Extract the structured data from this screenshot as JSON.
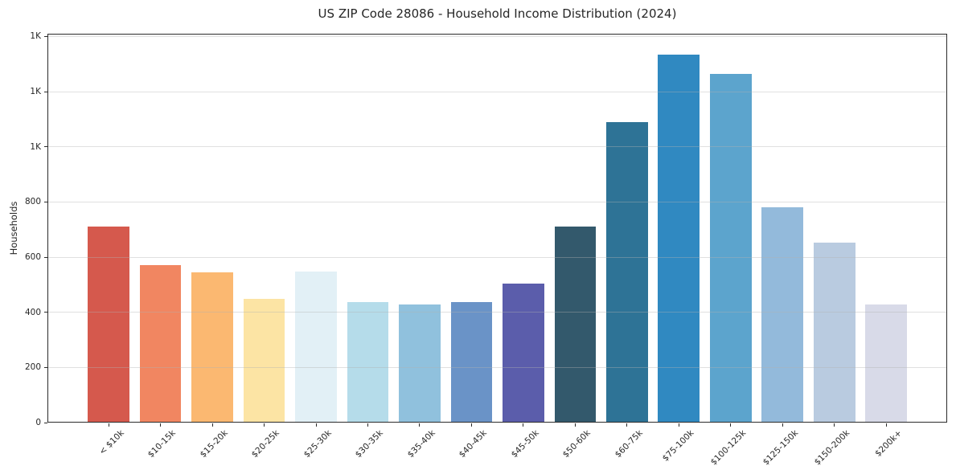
{
  "figure": {
    "title": "US ZIP Code 28086 - Household Income Distribution (2024)"
  },
  "chart_data": {
    "type": "bar",
    "title": "US ZIP Code 28086 - Household Income Distribution (2024)",
    "xlabel": "",
    "ylabel": "Households",
    "categories": [
      "< $10k",
      "$10-15k",
      "$15-20k",
      "$20-25k",
      "$25-30k",
      "$30-35k",
      "$35-40k",
      "$40-45k",
      "$45-50k",
      "$50-60k",
      "$60-75k",
      "$75-100k",
      "$100-125k",
      "$125-150k",
      "$150-200k",
      "$200k+"
    ],
    "values": [
      710,
      572,
      545,
      448,
      548,
      438,
      428,
      438,
      505,
      712,
      1090,
      1335,
      1265,
      782,
      652,
      428
    ],
    "bar_colors": [
      "#d5594d",
      "#f18661",
      "#fbb871",
      "#fce4a4",
      "#e2f0f6",
      "#b5dcea",
      "#90c1dd",
      "#6a93c7",
      "#5b5dab",
      "#33596c",
      "#2e7396",
      "#3089c1",
      "#5ca4cd",
      "#93badb",
      "#b9cbe0",
      "#d8dae8"
    ],
    "ylim": [
      0,
      1410
    ],
    "yticks": [
      {
        "value": 0,
        "label": "0"
      },
      {
        "value": 200,
        "label": "200"
      },
      {
        "value": 400,
        "label": "400"
      },
      {
        "value": 600,
        "label": "600"
      },
      {
        "value": 800,
        "label": "800"
      },
      {
        "value": 1000,
        "label": "1K"
      },
      {
        "value": 1200,
        "label": "1K"
      },
      {
        "value": 1400,
        "label": "1K"
      }
    ],
    "grid": true,
    "legend": "none",
    "spine_color": "#2b2b2b",
    "gridline_color": "#b2b2b2",
    "background_color": "#ffffff"
  }
}
